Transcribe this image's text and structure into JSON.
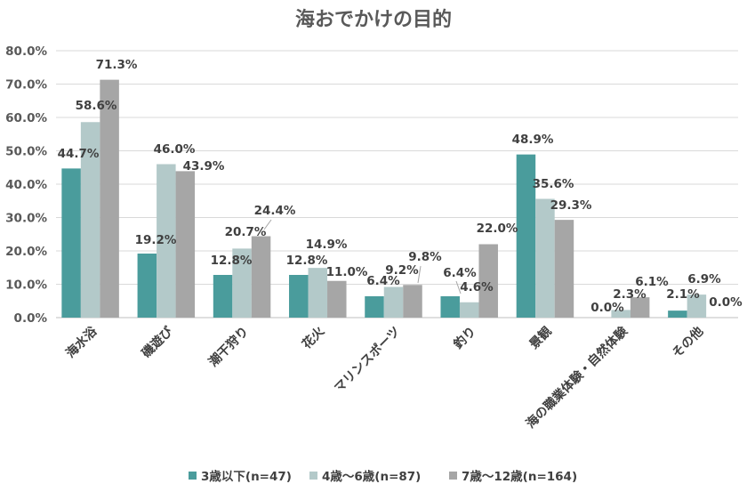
{
  "chart_data": {
    "type": "bar",
    "title": "海おでかけの目的",
    "categories": [
      "海水浴",
      "磯遊び",
      "潮干狩り",
      "花火",
      "マリンスポーツ",
      "釣り",
      "景観",
      "海の職業体験・自然体験",
      "その他"
    ],
    "series": [
      {
        "name": "3歳以下(n=47)",
        "color": "#4a9c9c",
        "values": [
          44.7,
          19.2,
          12.8,
          12.8,
          6.4,
          6.4,
          48.9,
          0.0,
          2.1
        ],
        "labels": [
          "44.7%",
          "19.2%",
          "12.8%",
          "12.8%",
          "6.4%",
          "6.4%",
          "48.9%",
          "0.0%",
          "2.1%"
        ]
      },
      {
        "name": "4歳〜6歳(n=87)",
        "color": "#b3c9c9",
        "values": [
          58.6,
          46.0,
          20.7,
          14.9,
          9.2,
          4.6,
          35.6,
          2.3,
          6.9
        ],
        "labels": [
          "58.6%",
          "46.0%",
          "20.7%",
          "14.9%",
          "9.2%",
          "4.6%",
          "35.6%",
          "2.3%",
          "6.9%"
        ]
      },
      {
        "name": "7歳〜12歳(n=164)",
        "color": "#a6a6a6",
        "values": [
          71.3,
          43.9,
          24.4,
          11.0,
          9.8,
          22.0,
          29.3,
          6.1,
          0.0
        ],
        "labels": [
          "71.3%",
          "43.9%",
          "24.4%",
          "11.0%",
          "9.8%",
          "22.0%",
          "29.3%",
          "6.1%",
          "0.0%"
        ]
      }
    ],
    "ylim": [
      0,
      80
    ],
    "yticks": [
      0,
      10,
      20,
      30,
      40,
      50,
      60,
      70,
      80
    ],
    "ytick_labels": [
      "0.0%",
      "10.0%",
      "20.0%",
      "30.0%",
      "40.0%",
      "50.0%",
      "60.0%",
      "70.0%",
      "80.0%"
    ],
    "grid": true,
    "legend_position": "bottom"
  }
}
